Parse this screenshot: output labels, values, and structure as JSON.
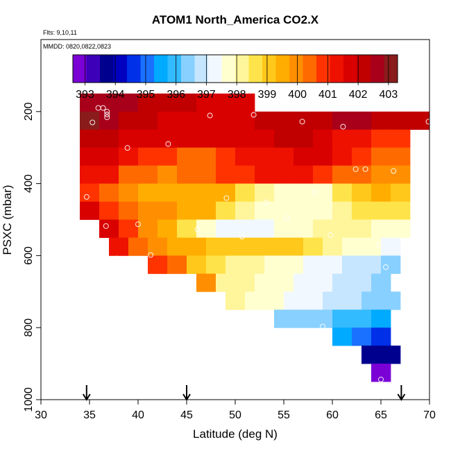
{
  "chart_data": {
    "type": "heatmap",
    "title": "ATOM1 North_America CO2.X",
    "subtitle_lines": [
      "Flts: 9,10,11",
      "MMDD: 0820,0822,0823"
    ],
    "xlabel": "Latitude (deg N)",
    "ylabel": "PSXC (mbar)",
    "xlim": [
      30,
      70
    ],
    "ylim": [
      1000,
      0
    ],
    "x_ticks": [
      30,
      35,
      40,
      45,
      50,
      55,
      60,
      65,
      70
    ],
    "y_ticks": [
      200,
      400,
      600,
      800,
      1000
    ],
    "colorbar": {
      "ticks": [
        393,
        394,
        395,
        396,
        397,
        398,
        399,
        400,
        401,
        402,
        403
      ],
      "range": [
        392.6,
        403.3
      ],
      "colors": [
        "#7a00d6",
        "#3d00b8",
        "#00008f",
        "#0000c0",
        "#0030e8",
        "#1a70ff",
        "#00aaff",
        "#33bbff",
        "#88d0ff",
        "#c6e6ff",
        "#f2f8ff",
        "#ffffd0",
        "#fff59a",
        "#ffe34a",
        "#ffc81a",
        "#ffad00",
        "#ff8f00",
        "#ff6a00",
        "#ff3300",
        "#ee1100",
        "#d90000",
        "#c00000",
        "#a8001a",
        "#8a1c1c"
      ]
    },
    "arrows_lat": [
      34.7,
      45.0,
      67.1
    ],
    "cells": [
      {
        "lat": 35,
        "p": 175,
        "v": 402.8
      },
      {
        "lat": 37,
        "p": 175,
        "v": 402.7
      },
      {
        "lat": 39,
        "p": 175,
        "v": 402.5
      },
      {
        "lat": 41,
        "p": 175,
        "v": 402.4
      },
      {
        "lat": 43,
        "p": 175,
        "v": 402.2
      },
      {
        "lat": 45,
        "p": 175,
        "v": 402.1
      },
      {
        "lat": 47,
        "p": 175,
        "v": 401.9
      },
      {
        "lat": 49,
        "p": 175,
        "v": 401.7
      },
      {
        "lat": 51,
        "p": 175,
        "v": 401.6
      },
      {
        "lat": 35,
        "p": 225,
        "v": 402.9
      },
      {
        "lat": 37,
        "p": 225,
        "v": 402.8
      },
      {
        "lat": 39,
        "p": 225,
        "v": 402.4
      },
      {
        "lat": 41,
        "p": 225,
        "v": 402.1
      },
      {
        "lat": 43,
        "p": 225,
        "v": 401.9
      },
      {
        "lat": 45,
        "p": 225,
        "v": 401.8
      },
      {
        "lat": 47,
        "p": 225,
        "v": 401.8
      },
      {
        "lat": 49,
        "p": 225,
        "v": 401.7
      },
      {
        "lat": 51,
        "p": 225,
        "v": 401.8
      },
      {
        "lat": 53,
        "p": 225,
        "v": 402.0
      },
      {
        "lat": 55,
        "p": 225,
        "v": 402.1
      },
      {
        "lat": 57,
        "p": 225,
        "v": 402.2
      },
      {
        "lat": 59,
        "p": 225,
        "v": 402.3
      },
      {
        "lat": 61,
        "p": 225,
        "v": 402.5
      },
      {
        "lat": 63,
        "p": 225,
        "v": 402.6
      },
      {
        "lat": 65,
        "p": 225,
        "v": 402.4
      },
      {
        "lat": 67,
        "p": 225,
        "v": 402.2
      },
      {
        "lat": 69,
        "p": 225,
        "v": 402.0
      },
      {
        "lat": 35,
        "p": 275,
        "v": 402.1
      },
      {
        "lat": 37,
        "p": 275,
        "v": 402.0
      },
      {
        "lat": 39,
        "p": 275,
        "v": 401.9
      },
      {
        "lat": 41,
        "p": 275,
        "v": 401.8
      },
      {
        "lat": 43,
        "p": 275,
        "v": 401.8
      },
      {
        "lat": 45,
        "p": 275,
        "v": 401.7
      },
      {
        "lat": 47,
        "p": 275,
        "v": 401.6
      },
      {
        "lat": 49,
        "p": 275,
        "v": 401.7
      },
      {
        "lat": 51,
        "p": 275,
        "v": 401.8
      },
      {
        "lat": 53,
        "p": 275,
        "v": 401.9
      },
      {
        "lat": 55,
        "p": 275,
        "v": 402.0
      },
      {
        "lat": 57,
        "p": 275,
        "v": 402.0
      },
      {
        "lat": 59,
        "p": 275,
        "v": 401.8
      },
      {
        "lat": 61,
        "p": 275,
        "v": 401.5
      },
      {
        "lat": 63,
        "p": 275,
        "v": 401.2
      },
      {
        "lat": 65,
        "p": 275,
        "v": 401.0
      },
      {
        "lat": 67,
        "p": 275,
        "v": 400.7
      },
      {
        "lat": 35,
        "p": 325,
        "v": 401.8
      },
      {
        "lat": 37,
        "p": 325,
        "v": 401.7
      },
      {
        "lat": 39,
        "p": 325,
        "v": 401.3
      },
      {
        "lat": 41,
        "p": 325,
        "v": 400.9
      },
      {
        "lat": 43,
        "p": 325,
        "v": 400.7
      },
      {
        "lat": 45,
        "p": 325,
        "v": 400.6
      },
      {
        "lat": 47,
        "p": 325,
        "v": 400.6
      },
      {
        "lat": 49,
        "p": 325,
        "v": 400.8
      },
      {
        "lat": 51,
        "p": 325,
        "v": 401.1
      },
      {
        "lat": 53,
        "p": 325,
        "v": 401.3
      },
      {
        "lat": 55,
        "p": 325,
        "v": 401.5
      },
      {
        "lat": 57,
        "p": 325,
        "v": 401.7
      },
      {
        "lat": 59,
        "p": 325,
        "v": 401.6
      },
      {
        "lat": 61,
        "p": 325,
        "v": 401.3
      },
      {
        "lat": 63,
        "p": 325,
        "v": 400.9
      },
      {
        "lat": 65,
        "p": 325,
        "v": 400.5
      },
      {
        "lat": 67,
        "p": 325,
        "v": 400.2
      },
      {
        "lat": 35,
        "p": 375,
        "v": 401.5
      },
      {
        "lat": 37,
        "p": 375,
        "v": 401.2
      },
      {
        "lat": 39,
        "p": 375,
        "v": 400.6
      },
      {
        "lat": 41,
        "p": 375,
        "v": 400.2
      },
      {
        "lat": 43,
        "p": 375,
        "v": 400.1
      },
      {
        "lat": 45,
        "p": 375,
        "v": 400.2
      },
      {
        "lat": 47,
        "p": 375,
        "v": 400.4
      },
      {
        "lat": 49,
        "p": 375,
        "v": 400.7
      },
      {
        "lat": 51,
        "p": 375,
        "v": 401.0
      },
      {
        "lat": 53,
        "p": 375,
        "v": 401.3
      },
      {
        "lat": 55,
        "p": 375,
        "v": 401.5
      },
      {
        "lat": 57,
        "p": 375,
        "v": 401.4
      },
      {
        "lat": 59,
        "p": 375,
        "v": 400.9
      },
      {
        "lat": 61,
        "p": 375,
        "v": 400.5
      },
      {
        "lat": 63,
        "p": 375,
        "v": 400.2
      },
      {
        "lat": 65,
        "p": 375,
        "v": 400.0
      },
      {
        "lat": 67,
        "p": 375,
        "v": 399.8
      },
      {
        "lat": 35,
        "p": 425,
        "v": 401.0
      },
      {
        "lat": 37,
        "p": 425,
        "v": 400.4
      },
      {
        "lat": 39,
        "p": 425,
        "v": 399.9
      },
      {
        "lat": 41,
        "p": 425,
        "v": 399.7
      },
      {
        "lat": 43,
        "p": 425,
        "v": 399.6
      },
      {
        "lat": 45,
        "p": 425,
        "v": 399.6
      },
      {
        "lat": 47,
        "p": 425,
        "v": 399.7
      },
      {
        "lat": 49,
        "p": 425,
        "v": 399.4
      },
      {
        "lat": 51,
        "p": 425,
        "v": 398.7
      },
      {
        "lat": 53,
        "p": 425,
        "v": 398.1
      },
      {
        "lat": 55,
        "p": 425,
        "v": 397.7
      },
      {
        "lat": 57,
        "p": 425,
        "v": 397.6
      },
      {
        "lat": 59,
        "p": 425,
        "v": 397.9
      },
      {
        "lat": 61,
        "p": 425,
        "v": 398.6
      },
      {
        "lat": 63,
        "p": 425,
        "v": 399.2
      },
      {
        "lat": 65,
        "p": 425,
        "v": 399.4
      },
      {
        "lat": 67,
        "p": 425,
        "v": 399.1
      },
      {
        "lat": 35,
        "p": 475,
        "v": 401.7
      },
      {
        "lat": 37,
        "p": 475,
        "v": 401.0
      },
      {
        "lat": 39,
        "p": 475,
        "v": 400.4
      },
      {
        "lat": 41,
        "p": 475,
        "v": 400.0
      },
      {
        "lat": 43,
        "p": 475,
        "v": 399.8
      },
      {
        "lat": 45,
        "p": 475,
        "v": 399.7
      },
      {
        "lat": 47,
        "p": 475,
        "v": 399.4
      },
      {
        "lat": 49,
        "p": 475,
        "v": 398.8
      },
      {
        "lat": 51,
        "p": 475,
        "v": 398.2
      },
      {
        "lat": 53,
        "p": 475,
        "v": 397.8
      },
      {
        "lat": 55,
        "p": 475,
        "v": 397.6
      },
      {
        "lat": 57,
        "p": 475,
        "v": 397.7
      },
      {
        "lat": 59,
        "p": 475,
        "v": 397.9
      },
      {
        "lat": 61,
        "p": 475,
        "v": 398.1
      },
      {
        "lat": 63,
        "p": 475,
        "v": 398.4
      },
      {
        "lat": 65,
        "p": 475,
        "v": 398.7
      },
      {
        "lat": 67,
        "p": 475,
        "v": 398.4
      },
      {
        "lat": 37,
        "p": 525,
        "v": 401.6
      },
      {
        "lat": 39,
        "p": 525,
        "v": 400.9
      },
      {
        "lat": 41,
        "p": 525,
        "v": 400.0
      },
      {
        "lat": 43,
        "p": 525,
        "v": 399.4
      },
      {
        "lat": 45,
        "p": 525,
        "v": 398.6
      },
      {
        "lat": 47,
        "p": 525,
        "v": 397.8
      },
      {
        "lat": 49,
        "p": 525,
        "v": 397.3
      },
      {
        "lat": 51,
        "p": 525,
        "v": 397.1
      },
      {
        "lat": 53,
        "p": 525,
        "v": 397.3
      },
      {
        "lat": 55,
        "p": 525,
        "v": 397.6
      },
      {
        "lat": 57,
        "p": 525,
        "v": 397.9
      },
      {
        "lat": 59,
        "p": 525,
        "v": 398.1
      },
      {
        "lat": 61,
        "p": 525,
        "v": 398.2
      },
      {
        "lat": 63,
        "p": 525,
        "v": 398.0
      },
      {
        "lat": 65,
        "p": 525,
        "v": 397.8
      },
      {
        "lat": 67,
        "p": 525,
        "v": 397.6
      },
      {
        "lat": 38,
        "p": 575,
        "v": 401.4
      },
      {
        "lat": 40,
        "p": 575,
        "v": 400.4
      },
      {
        "lat": 42,
        "p": 575,
        "v": 399.9
      },
      {
        "lat": 44,
        "p": 575,
        "v": 399.6
      },
      {
        "lat": 46,
        "p": 575,
        "v": 399.3
      },
      {
        "lat": 48,
        "p": 575,
        "v": 399.2
      },
      {
        "lat": 50,
        "p": 575,
        "v": 399.1
      },
      {
        "lat": 52,
        "p": 575,
        "v": 399.0
      },
      {
        "lat": 54,
        "p": 575,
        "v": 398.9
      },
      {
        "lat": 56,
        "p": 575,
        "v": 398.9
      },
      {
        "lat": 58,
        "p": 575,
        "v": 398.7
      },
      {
        "lat": 60,
        "p": 575,
        "v": 398.3
      },
      {
        "lat": 62,
        "p": 575,
        "v": 397.9
      },
      {
        "lat": 64,
        "p": 575,
        "v": 397.6
      },
      {
        "lat": 66,
        "p": 575,
        "v": 397.3
      },
      {
        "lat": 42,
        "p": 625,
        "v": 400.7
      },
      {
        "lat": 44,
        "p": 625,
        "v": 400.2
      },
      {
        "lat": 46,
        "p": 625,
        "v": 399.0
      },
      {
        "lat": 48,
        "p": 625,
        "v": 398.5
      },
      {
        "lat": 50,
        "p": 625,
        "v": 398.3
      },
      {
        "lat": 52,
        "p": 625,
        "v": 398.1
      },
      {
        "lat": 54,
        "p": 625,
        "v": 397.8
      },
      {
        "lat": 56,
        "p": 625,
        "v": 397.6
      },
      {
        "lat": 58,
        "p": 625,
        "v": 397.4
      },
      {
        "lat": 60,
        "p": 625,
        "v": 397.2
      },
      {
        "lat": 62,
        "p": 625,
        "v": 397.0
      },
      {
        "lat": 64,
        "p": 625,
        "v": 396.8
      },
      {
        "lat": 66,
        "p": 625,
        "v": 396.6
      },
      {
        "lat": 47,
        "p": 675,
        "v": 399.8
      },
      {
        "lat": 49,
        "p": 675,
        "v": 398.3
      },
      {
        "lat": 51,
        "p": 675,
        "v": 398.0
      },
      {
        "lat": 53,
        "p": 675,
        "v": 397.8
      },
      {
        "lat": 55,
        "p": 675,
        "v": 397.6
      },
      {
        "lat": 57,
        "p": 675,
        "v": 397.4
      },
      {
        "lat": 59,
        "p": 675,
        "v": 397.2
      },
      {
        "lat": 61,
        "p": 675,
        "v": 397.0
      },
      {
        "lat": 63,
        "p": 675,
        "v": 396.8
      },
      {
        "lat": 65,
        "p": 675,
        "v": 396.5
      },
      {
        "lat": 50,
        "p": 725,
        "v": 398.1
      },
      {
        "lat": 52,
        "p": 725,
        "v": 397.9
      },
      {
        "lat": 54,
        "p": 725,
        "v": 397.6
      },
      {
        "lat": 56,
        "p": 725,
        "v": 397.4
      },
      {
        "lat": 58,
        "p": 725,
        "v": 397.1
      },
      {
        "lat": 60,
        "p": 725,
        "v": 396.9
      },
      {
        "lat": 62,
        "p": 725,
        "v": 396.7
      },
      {
        "lat": 64,
        "p": 725,
        "v": 396.4
      },
      {
        "lat": 66,
        "p": 725,
        "v": 396.2
      },
      {
        "lat": 55,
        "p": 775,
        "v": 396.3
      },
      {
        "lat": 57,
        "p": 775,
        "v": 396.3
      },
      {
        "lat": 59,
        "p": 775,
        "v": 396.2
      },
      {
        "lat": 61,
        "p": 775,
        "v": 396.0
      },
      {
        "lat": 63,
        "p": 775,
        "v": 395.8
      },
      {
        "lat": 65,
        "p": 775,
        "v": 395.4
      },
      {
        "lat": 61,
        "p": 825,
        "v": 395.3
      },
      {
        "lat": 63,
        "p": 825,
        "v": 395.0
      },
      {
        "lat": 65,
        "p": 825,
        "v": 394.8
      },
      {
        "lat": 64,
        "p": 875,
        "v": 393.9
      },
      {
        "lat": 66,
        "p": 875,
        "v": 393.5
      },
      {
        "lat": 65,
        "p": 925,
        "v": 392.8
      }
    ],
    "points": [
      {
        "lat": 35.3,
        "p": 230
      },
      {
        "lat": 35.9,
        "p": 190
      },
      {
        "lat": 36.4,
        "p": 190
      },
      {
        "lat": 36.8,
        "p": 200
      },
      {
        "lat": 36.8,
        "p": 208
      },
      {
        "lat": 36.8,
        "p": 216
      },
      {
        "lat": 38.9,
        "p": 301
      },
      {
        "lat": 43.1,
        "p": 290
      },
      {
        "lat": 47.4,
        "p": 211
      },
      {
        "lat": 51.9,
        "p": 209
      },
      {
        "lat": 56.9,
        "p": 228
      },
      {
        "lat": 61.1,
        "p": 242
      },
      {
        "lat": 69.9,
        "p": 228
      },
      {
        "lat": 62.4,
        "p": 360
      },
      {
        "lat": 63.4,
        "p": 360
      },
      {
        "lat": 66.3,
        "p": 365
      },
      {
        "lat": 34.7,
        "p": 437
      },
      {
        "lat": 49.1,
        "p": 440
      },
      {
        "lat": 53.2,
        "p": 452
      },
      {
        "lat": 58.2,
        "p": 425
      },
      {
        "lat": 55.3,
        "p": 496
      },
      {
        "lat": 36.7,
        "p": 518
      },
      {
        "lat": 40.0,
        "p": 513
      },
      {
        "lat": 46.1,
        "p": 527
      },
      {
        "lat": 50.7,
        "p": 547
      },
      {
        "lat": 59.8,
        "p": 543
      },
      {
        "lat": 64.8,
        "p": 570
      },
      {
        "lat": 37.8,
        "p": 608
      },
      {
        "lat": 41.3,
        "p": 598
      },
      {
        "lat": 65.5,
        "p": 632
      },
      {
        "lat": 59.0,
        "p": 797
      },
      {
        "lat": 65.0,
        "p": 944
      }
    ]
  }
}
